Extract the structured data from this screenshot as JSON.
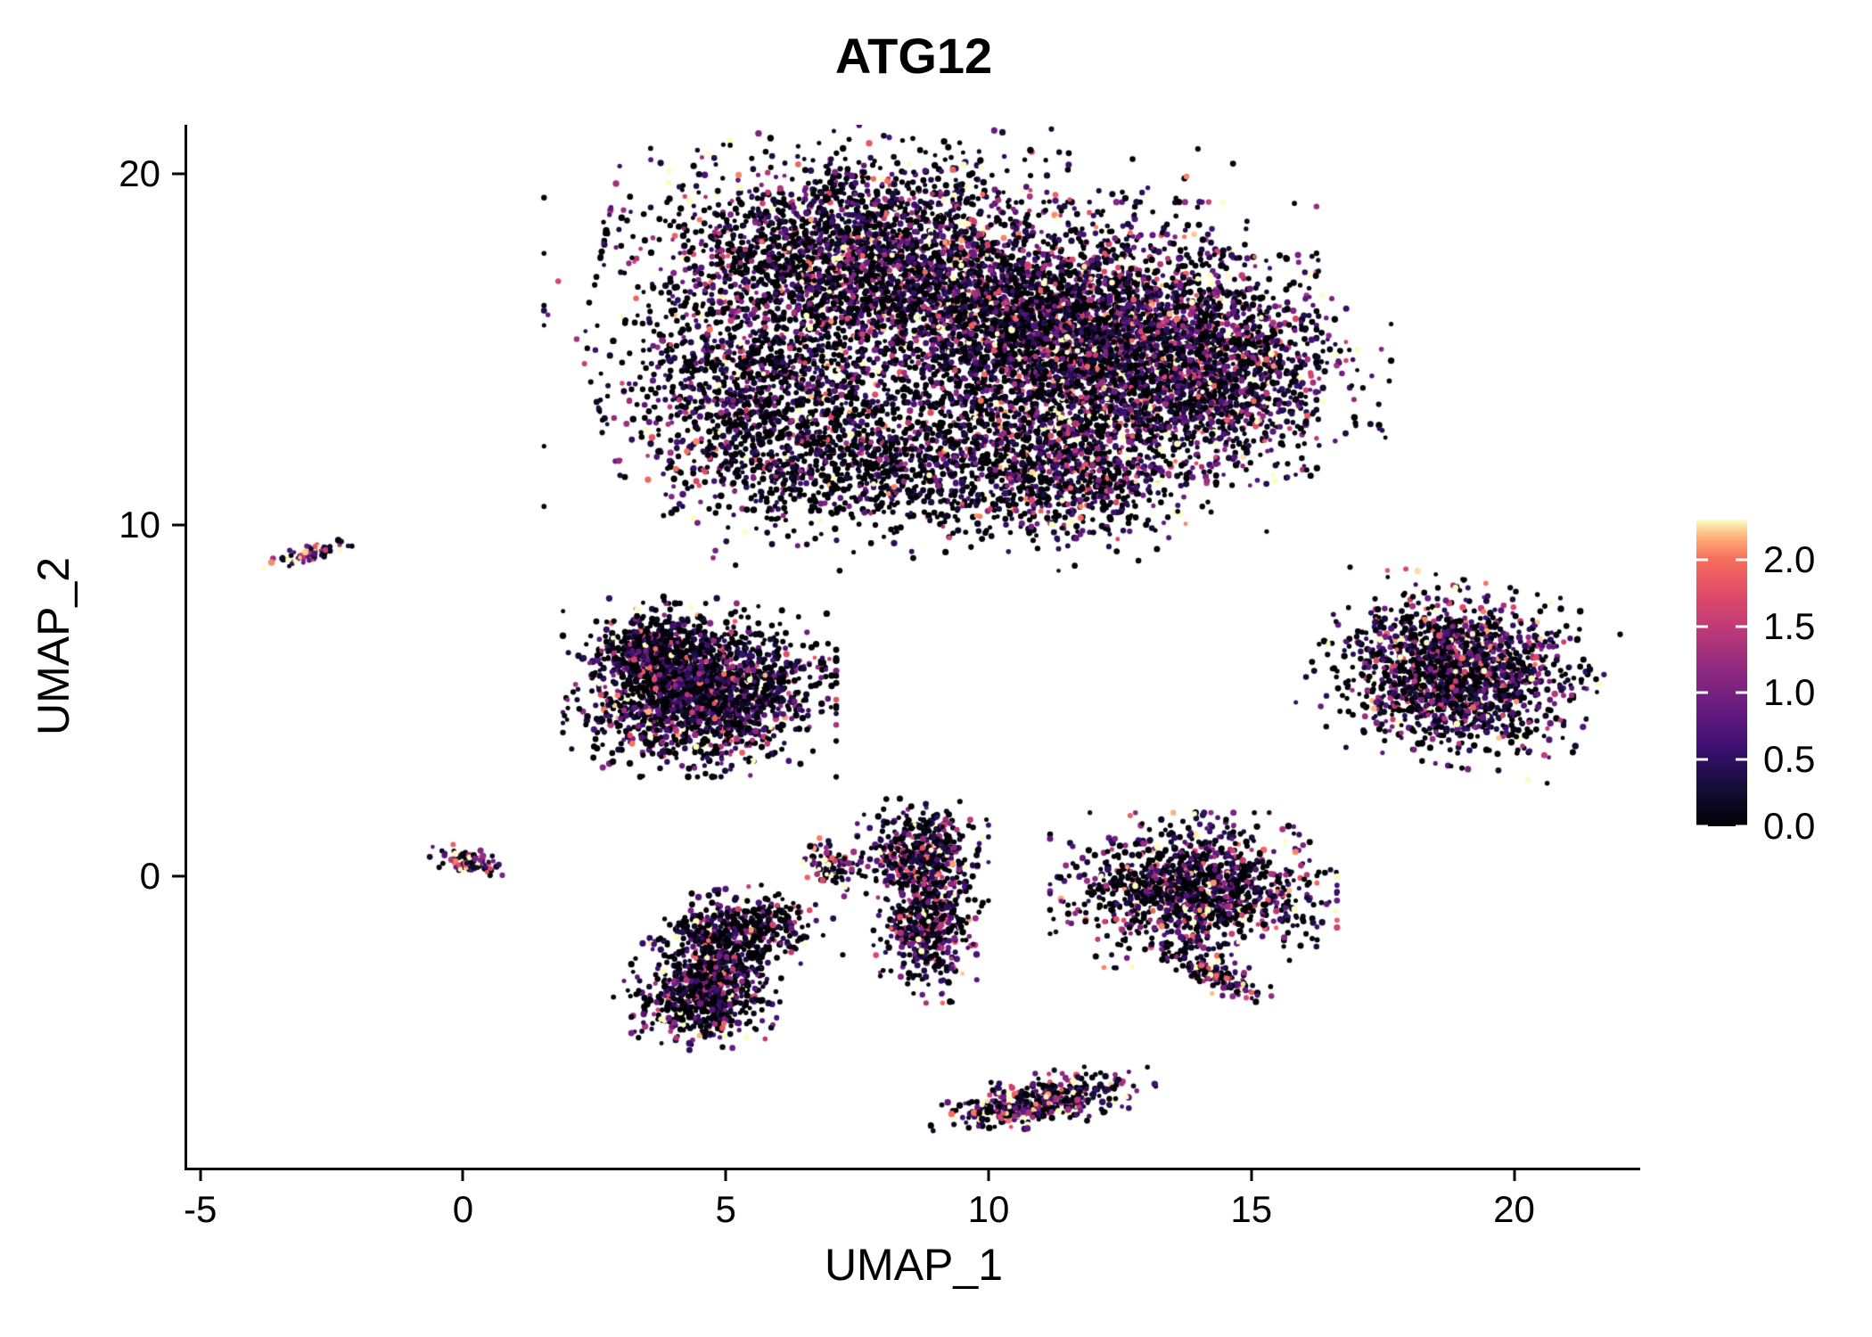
{
  "chart_data": {
    "type": "scatter",
    "title": "ATG12",
    "xlabel": "UMAP_1",
    "ylabel": "UMAP_2",
    "xlim": [
      -5.25,
      22.4
    ],
    "ylim": [
      -8.3,
      21.4
    ],
    "x_ticks": [
      -5,
      0,
      5,
      10,
      15,
      20
    ],
    "y_ticks": [
      0,
      10,
      20
    ],
    "grid": false,
    "background": "#ffffff",
    "legend": {
      "type": "colorbar",
      "position": "right",
      "ticks": [
        0.0,
        0.5,
        1.0,
        1.5,
        2.0
      ],
      "vmin": 0.0,
      "vmax": 2.3
    },
    "colormap": {
      "name": "magma",
      "stops": [
        [
          0.0,
          "#000004"
        ],
        [
          0.125,
          "#140e36"
        ],
        [
          0.25,
          "#3b0f70"
        ],
        [
          0.375,
          "#641a80"
        ],
        [
          0.5,
          "#8c2981"
        ],
        [
          0.625,
          "#b73779"
        ],
        [
          0.75,
          "#de4968"
        ],
        [
          0.875,
          "#f7705c"
        ],
        [
          0.94,
          "#fdae78"
        ],
        [
          1.0,
          "#fcfdbf"
        ]
      ]
    },
    "point_radius_px": 3.0,
    "seed": 42,
    "clusters": [
      {
        "cx": 7.6,
        "cy": 17.6,
        "sx": 1.9,
        "sy": 1.35,
        "rot": -8,
        "n": 2600,
        "p0": 0.38,
        "mean": 0.8
      },
      {
        "cx": 11.3,
        "cy": 15.3,
        "sx": 1.9,
        "sy": 1.5,
        "rot": 0,
        "n": 3200,
        "p0": 0.3,
        "mean": 0.85
      },
      {
        "cx": 13.9,
        "cy": 14.4,
        "sx": 1.25,
        "sy": 1.35,
        "rot": 25,
        "n": 1700,
        "p0": 0.26,
        "mean": 0.9
      },
      {
        "cx": 5.6,
        "cy": 13.5,
        "sx": 1.15,
        "sy": 1.6,
        "rot": 12,
        "n": 1100,
        "p0": 0.42,
        "mean": 0.8
      },
      {
        "cx": 8.4,
        "cy": 11.7,
        "sx": 1.8,
        "sy": 0.95,
        "rot": 0,
        "n": 900,
        "p0": 0.55,
        "mean": 0.6
      },
      {
        "cx": 11.6,
        "cy": 11.4,
        "sx": 1.05,
        "sy": 0.85,
        "rot": 0,
        "n": 700,
        "p0": 0.33,
        "mean": 0.85
      },
      {
        "cx": 9.6,
        "cy": 15.2,
        "sx": 3.1,
        "sy": 2.5,
        "rot": 0,
        "n": 900,
        "p0": 0.5,
        "mean": 0.6
      },
      {
        "cx": -2.9,
        "cy": 9.2,
        "sx": 0.38,
        "sy": 0.1,
        "rot": 25,
        "n": 70,
        "p0": 0.12,
        "mean": 1.1
      },
      {
        "cx": 4.5,
        "cy": 5.3,
        "sx": 1.0,
        "sy": 0.95,
        "rot": 0,
        "n": 1900,
        "p0": 0.46,
        "mean": 0.7
      },
      {
        "cx": 3.7,
        "cy": 6.4,
        "sx": 0.55,
        "sy": 0.6,
        "rot": 0,
        "n": 350,
        "p0": 0.46,
        "mean": 0.7
      },
      {
        "cx": 18.9,
        "cy": 5.8,
        "sx": 1.05,
        "sy": 1.0,
        "rot": -15,
        "n": 1700,
        "p0": 0.34,
        "mean": 0.85
      },
      {
        "cx": 0.05,
        "cy": 0.45,
        "sx": 0.3,
        "sy": 0.15,
        "rot": -12,
        "n": 90,
        "p0": 0.18,
        "mean": 1.0
      },
      {
        "cx": 7.0,
        "cy": 0.3,
        "sx": 0.2,
        "sy": 0.35,
        "rot": 15,
        "n": 80,
        "p0": 0.22,
        "mean": 1.0
      },
      {
        "cx": 7.6,
        "cy": 0.15,
        "sx": 0.45,
        "sy": 0.25,
        "rot": 0,
        "n": 14,
        "p0": 0.5,
        "mean": 0.7
      },
      {
        "cx": 8.75,
        "cy": 0.65,
        "sx": 0.48,
        "sy": 0.6,
        "rot": 0,
        "n": 420,
        "p0": 0.34,
        "mean": 0.8
      },
      {
        "cx": 8.85,
        "cy": -1.4,
        "sx": 0.4,
        "sy": 0.85,
        "rot": 0,
        "n": 480,
        "p0": 0.34,
        "mean": 0.8
      },
      {
        "cx": 13.9,
        "cy": -0.4,
        "sx": 1.05,
        "sy": 0.85,
        "rot": 0,
        "n": 1300,
        "p0": 0.4,
        "mean": 0.8
      },
      {
        "cx": 14.35,
        "cy": -2.9,
        "sx": 0.45,
        "sy": 0.16,
        "rot": -35,
        "n": 130,
        "p0": 0.28,
        "mean": 0.9
      },
      {
        "cx": 5.3,
        "cy": -1.5,
        "sx": 0.68,
        "sy": 0.45,
        "rot": 10,
        "n": 430,
        "p0": 0.45,
        "mean": 0.75
      },
      {
        "cx": 4.5,
        "cy": -3.5,
        "sx": 0.6,
        "sy": 0.55,
        "rot": -20,
        "n": 520,
        "p0": 0.45,
        "mean": 0.75
      },
      {
        "cx": 4.95,
        "cy": -2.5,
        "sx": 0.4,
        "sy": 0.5,
        "rot": 0,
        "n": 240,
        "p0": 0.45,
        "mean": 0.75
      },
      {
        "cx": 11.0,
        "cy": -6.4,
        "sx": 0.85,
        "sy": 0.3,
        "rot": 16,
        "n": 430,
        "p0": 0.22,
        "mean": 1.0
      }
    ]
  }
}
